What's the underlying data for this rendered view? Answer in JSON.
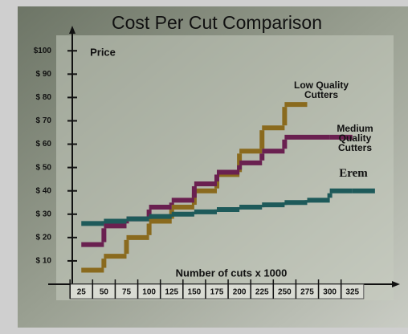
{
  "chart_data": {
    "type": "step",
    "title": "Cost Per Cut Comparison",
    "ylabel": "Price",
    "xlabel": "Number of cuts x 1000",
    "x": [
      25,
      50,
      75,
      100,
      125,
      150,
      175,
      200,
      225,
      250,
      275,
      300,
      325
    ],
    "xlim": [
      15,
      375
    ],
    "xticks": [
      25,
      50,
      75,
      100,
      125,
      150,
      175,
      200,
      225,
      250,
      275,
      300,
      325
    ],
    "ylim": [
      0,
      108
    ],
    "yticks": [
      {
        "value": 10,
        "label": "$ 10"
      },
      {
        "value": 20,
        "label": "$ 20"
      },
      {
        "value": 30,
        "label": "$ 30"
      },
      {
        "value": 40,
        "label": "$ 40"
      },
      {
        "value": 50,
        "label": "$ 50"
      },
      {
        "value": 60,
        "label": "$ 60"
      },
      {
        "value": 70,
        "label": "$ 70"
      },
      {
        "value": 80,
        "label": "$ 80"
      },
      {
        "value": 90,
        "label": "$ 90"
      },
      {
        "value": 100,
        "label": "$100"
      }
    ],
    "series": [
      {
        "name": "Low Quality Cutters",
        "color": "#8a6a1e",
        "values": [
          6,
          12,
          20,
          27,
          33,
          40,
          47,
          57,
          67,
          77,
          null,
          null,
          null
        ]
      },
      {
        "name": "Medium Quality Cutters",
        "color": "#6a2050",
        "values": [
          17,
          25,
          28,
          33,
          36,
          43,
          48,
          52,
          57,
          63,
          63,
          63,
          null
        ]
      },
      {
        "name": "Erem",
        "color": "#1e5a5a",
        "values": [
          26,
          27,
          28,
          29,
          30,
          31,
          32,
          33,
          34,
          35,
          36,
          40,
          40
        ]
      }
    ]
  }
}
